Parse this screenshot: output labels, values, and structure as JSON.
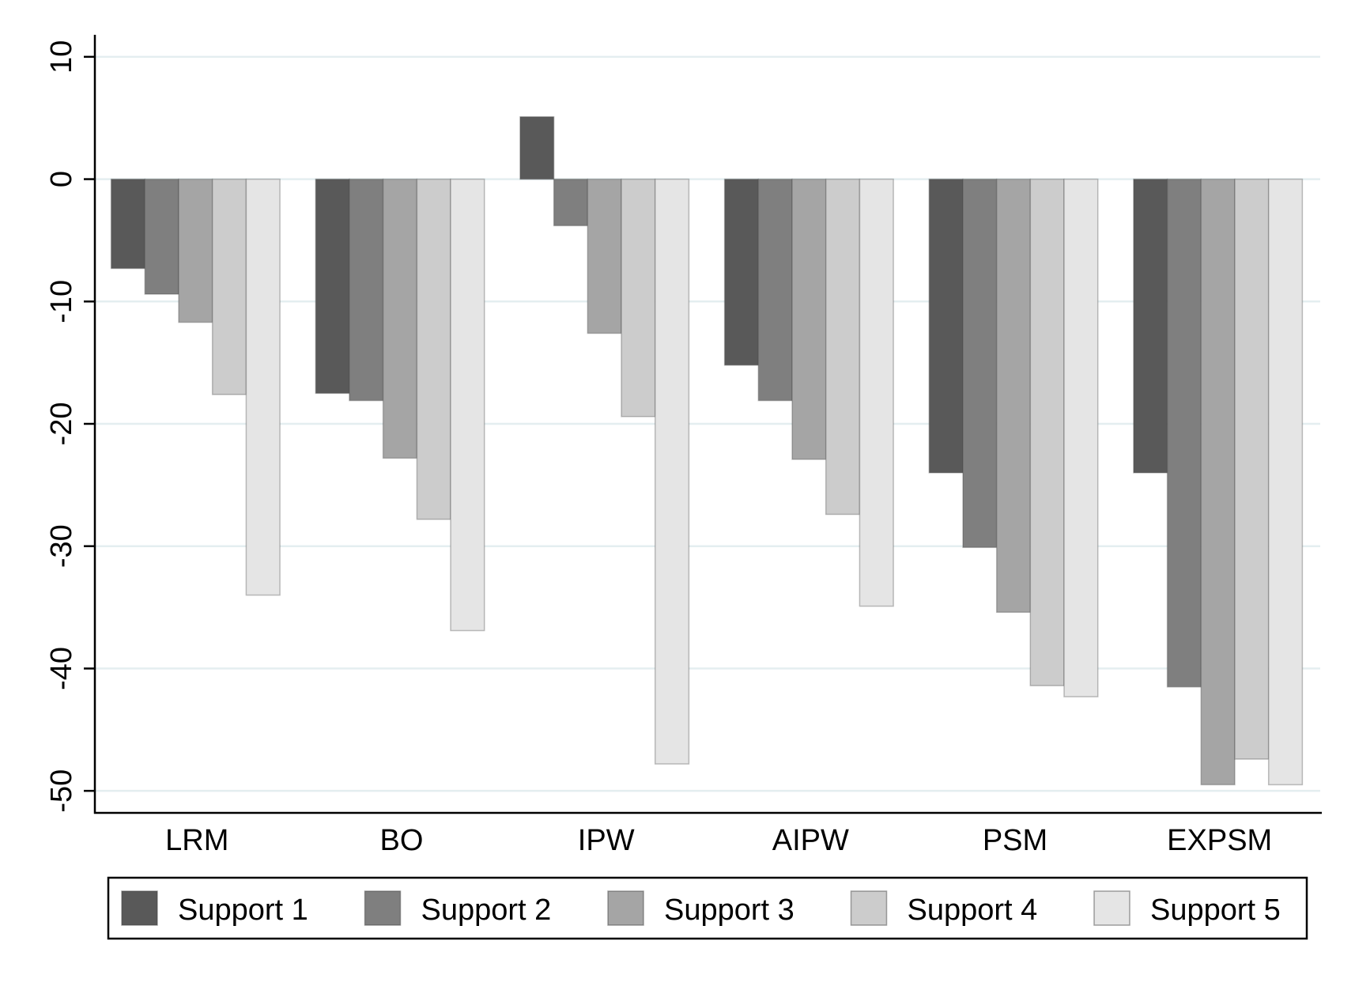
{
  "chart_data": {
    "type": "bar",
    "title": "",
    "xlabel": "",
    "ylabel": "",
    "categories": [
      "LRM",
      "BO",
      "IPW",
      "AIPW",
      "PSM",
      "EXPSM"
    ],
    "yticks": [
      10,
      0,
      -10,
      -20,
      -30,
      -40,
      -50
    ],
    "ytick_labels": [
      "10",
      "0",
      "-10",
      "-20",
      "-30",
      "-40",
      "-50"
    ],
    "ylim": [
      -51.8,
      11.8
    ],
    "grid": true,
    "legend_position": "bottom",
    "series": [
      {
        "name": "Support 1",
        "color": "#595959",
        "values": [
          -7.3,
          -17.5,
          5.1,
          -15.2,
          -24.0,
          -24.0
        ]
      },
      {
        "name": "Support 2",
        "color": "#7f7f7f",
        "values": [
          -9.4,
          -18.1,
          -3.8,
          -18.1,
          -30.1,
          -41.5
        ]
      },
      {
        "name": "Support 3",
        "color": "#a5a5a5",
        "values": [
          -11.7,
          -22.8,
          -12.6,
          -22.9,
          -35.4,
          -49.5
        ]
      },
      {
        "name": "Support 4",
        "color": "#cccccc",
        "values": [
          -17.6,
          -27.8,
          -19.4,
          -27.4,
          -41.4,
          -47.4
        ]
      },
      {
        "name": "Support 5",
        "color": "#e5e5e5",
        "values": [
          -34.0,
          -36.9,
          -47.8,
          -34.9,
          -42.3,
          -49.5
        ]
      }
    ]
  }
}
